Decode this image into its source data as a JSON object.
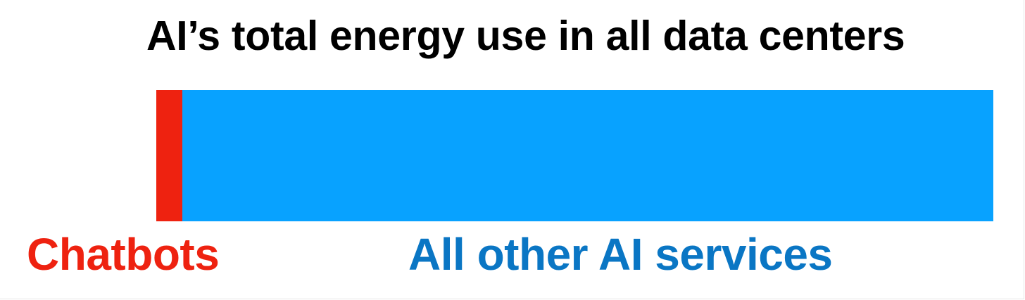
{
  "chart_data": {
    "type": "bar",
    "orientation": "horizontal-stacked",
    "title": "AI’s total energy use in all data centers",
    "categories": [
      "AI’s total energy use in all data centers"
    ],
    "series": [
      {
        "name": "Chatbots",
        "values": [
          3.1
        ],
        "color": "#ee2210",
        "label_color": "#ee2210"
      },
      {
        "name": "All other AI services",
        "values": [
          96.9
        ],
        "color": "#08a2ff",
        "label_color": "#0a76c4"
      }
    ],
    "unit": "percent of total",
    "legend": "none",
    "grid": false
  }
}
